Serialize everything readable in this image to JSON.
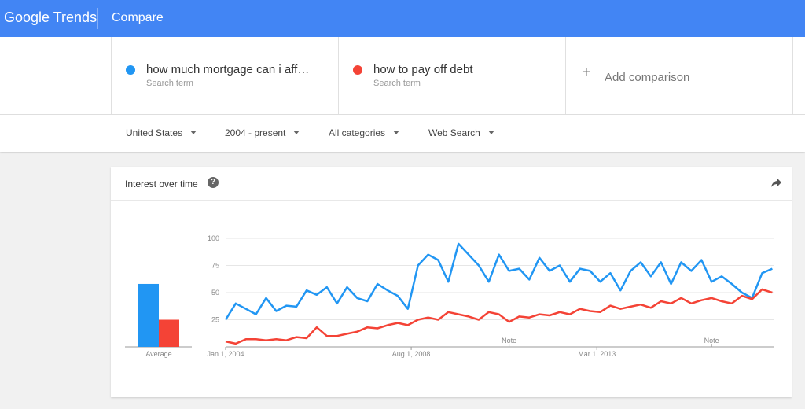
{
  "header": {
    "logo": "Google Trends",
    "title": "Compare"
  },
  "terms": [
    {
      "name": "how much mortgage can i aff…",
      "sub": "Search term",
      "color": "#2196f3"
    },
    {
      "name": "how to pay off debt",
      "sub": "Search term",
      "color": "#f44336"
    }
  ],
  "add_comparison": "Add comparison",
  "filters": [
    "United States",
    "2004 - present",
    "All categories",
    "Web Search"
  ],
  "card": {
    "title": "Interest over time"
  },
  "chart_data": {
    "type": "line",
    "x": [
      2004,
      2004.25,
      2004.5,
      2004.75,
      2005,
      2005.25,
      2005.5,
      2005.75,
      2006,
      2006.25,
      2006.5,
      2006.75,
      2007,
      2007.25,
      2007.5,
      2007.75,
      2008,
      2008.25,
      2008.5,
      2008.75,
      2009,
      2009.25,
      2009.5,
      2009.75,
      2010,
      2010.25,
      2010.5,
      2010.75,
      2011,
      2011.25,
      2011.5,
      2011.75,
      2012,
      2012.25,
      2012.5,
      2012.75,
      2013,
      2013.25,
      2013.5,
      2013.75,
      2014,
      2014.25,
      2014.5,
      2014.75,
      2015,
      2015.25,
      2015.5,
      2015.75,
      2016,
      2016.25,
      2016.5,
      2016.75,
      2017,
      2017.25,
      2017.5
    ],
    "series": [
      {
        "name": "how much mortgage can i aff…",
        "color": "#2196f3",
        "values": [
          25,
          40,
          35,
          30,
          45,
          33,
          38,
          37,
          52,
          48,
          55,
          40,
          55,
          45,
          42,
          58,
          52,
          47,
          35,
          75,
          85,
          80,
          60,
          95,
          85,
          75,
          60,
          85,
          70,
          72,
          62,
          82,
          70,
          75,
          60,
          72,
          70,
          60,
          68,
          52,
          70,
          78,
          65,
          78,
          58,
          78,
          70,
          80,
          60,
          65,
          58,
          50,
          45,
          68,
          72
        ]
      },
      {
        "name": "how to pay off debt",
        "color": "#f44336",
        "values": [
          5,
          3,
          7,
          7,
          6,
          7,
          6,
          9,
          8,
          18,
          10,
          10,
          12,
          14,
          18,
          17,
          20,
          22,
          20,
          25,
          27,
          25,
          32,
          30,
          28,
          25,
          32,
          30,
          23,
          28,
          27,
          30,
          29,
          32,
          30,
          35,
          33,
          32,
          38,
          35,
          37,
          39,
          36,
          42,
          40,
          45,
          40,
          43,
          45,
          42,
          40,
          47,
          44,
          53,
          50
        ]
      }
    ],
    "average": {
      "label": "Average",
      "values": [
        58,
        25
      ]
    },
    "notes": [
      {
        "x": 2011,
        "label": "Note"
      },
      {
        "x": 2016,
        "label": "Note"
      }
    ],
    "xlim": [
      2004,
      2017.55
    ],
    "xticks": [
      {
        "value": 2004,
        "label": "Jan 1, 2004"
      },
      {
        "value": 2008.583,
        "label": "Aug 1, 2008"
      },
      {
        "value": 2013.167,
        "label": "Mar 1, 2013"
      }
    ],
    "ylim": [
      0,
      100
    ],
    "yticks": [
      25,
      50,
      75,
      100
    ],
    "grid": true
  }
}
